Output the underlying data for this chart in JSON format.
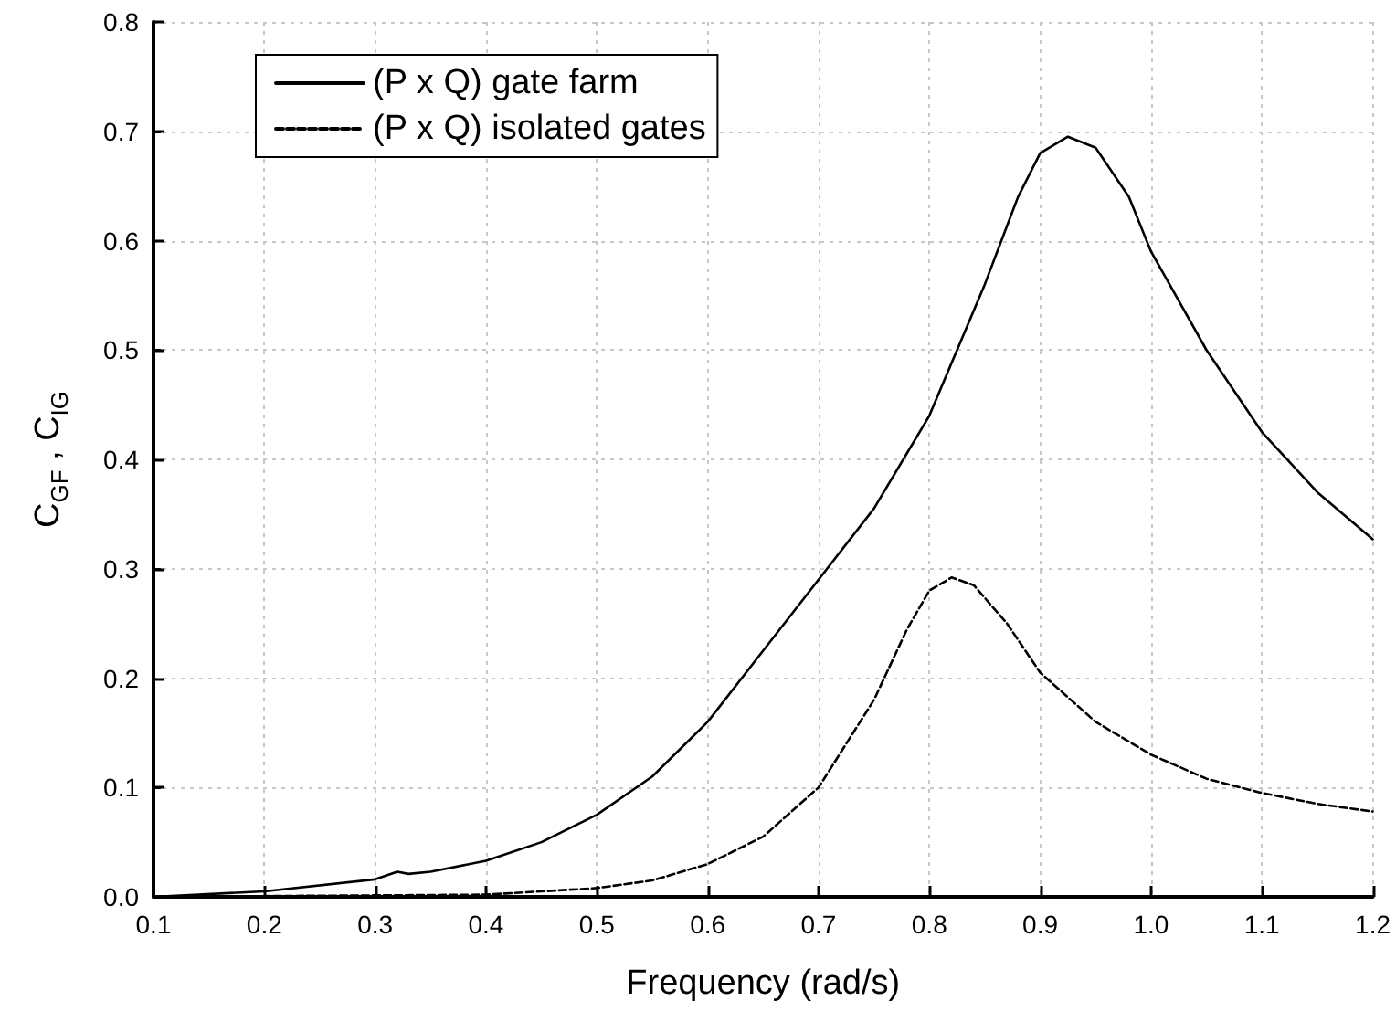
{
  "chart_data": {
    "type": "line",
    "xlabel": "Frequency (rad/s)",
    "ylabel": "C$_{GF}$ , C$_{IG}$",
    "xlim": [
      0.1,
      1.2
    ],
    "xticks": [
      0.1,
      0.2,
      0.3,
      0.4,
      0.5,
      0.6,
      0.7,
      0.8,
      0.9,
      {
        "value": 1.0,
        "label": "1.0"
      },
      1.1,
      1.2
    ],
    "ylim": [
      0,
      0.8
    ],
    "yticks": [
      {
        "value": 0,
        "label": "0.0"
      },
      0.1,
      0.2,
      0.3,
      0.4,
      0.5,
      0.6,
      0.7,
      0.8
    ],
    "grid": true,
    "legend": "top left",
    "marker": "none",
    "series": [
      {
        "name": "(P x Q) gate farm",
        "color": "#000000",
        "line_style": "solid",
        "x": [
          0.1,
          0.2,
          0.3,
          0.32,
          0.33,
          0.35,
          0.4,
          0.45,
          0.5,
          0.55,
          0.6,
          0.65,
          0.7,
          0.75,
          0.8,
          0.85,
          0.88,
          0.9,
          0.925,
          0.95,
          0.98,
          1.0,
          1.05,
          1.1,
          1.15,
          1.2
        ],
        "values": [
          0.0,
          0.005,
          0.016,
          0.023,
          0.021,
          0.023,
          0.033,
          0.05,
          0.075,
          0.11,
          0.16,
          0.225,
          0.29,
          0.355,
          0.44,
          0.56,
          0.64,
          0.68,
          0.695,
          0.685,
          0.64,
          0.59,
          0.5,
          0.425,
          0.37,
          0.327
        ]
      },
      {
        "name": "(P x Q) isolated gates",
        "color": "#000000",
        "line_style": "dashed",
        "x": [
          0.1,
          0.4,
          0.5,
          0.55,
          0.6,
          0.65,
          0.7,
          0.75,
          0.78,
          0.8,
          0.82,
          0.84,
          0.87,
          0.9,
          0.95,
          1.0,
          1.05,
          1.1,
          1.15,
          1.2
        ],
        "values": [
          0.0,
          0.002,
          0.008,
          0.015,
          0.03,
          0.055,
          0.1,
          0.18,
          0.245,
          0.28,
          0.292,
          0.285,
          0.25,
          0.205,
          0.16,
          0.13,
          0.108,
          0.095,
          0.085,
          0.078
        ]
      }
    ]
  }
}
